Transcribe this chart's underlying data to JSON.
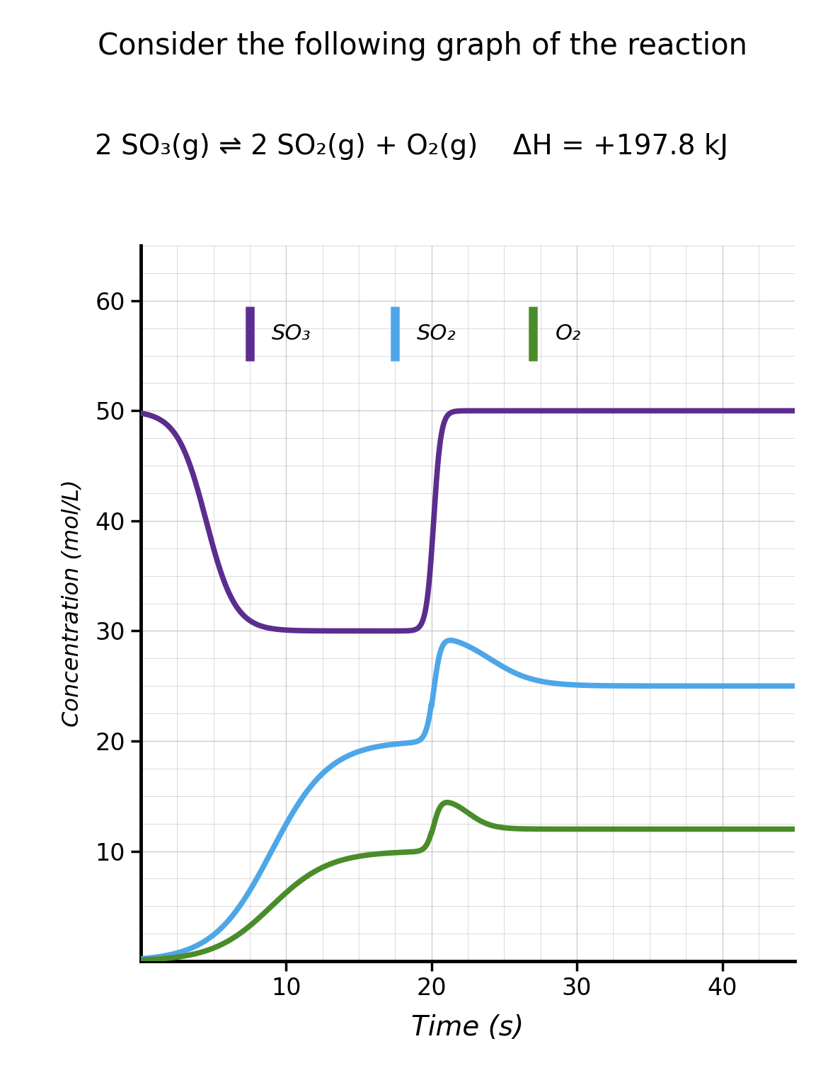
{
  "title_line1": "Consider the following graph of the reaction",
  "equation_text": "2 SO₃(g) ⇌ 2 SO₂(g) + O₂(g)    ΔH = +197.8 kJ",
  "ylabel": "Concentration (mol/L)",
  "xlabel": "Time (s)",
  "xlim": [
    0,
    45
  ],
  "ylim": [
    0,
    65
  ],
  "xticks": [
    10,
    20,
    30,
    40
  ],
  "yticks": [
    10,
    20,
    30,
    40,
    50,
    60
  ],
  "grid_color": "#cccccc",
  "background_color": "#ffffff",
  "so3_color": "#5B2D8E",
  "so2_color": "#4DA6E8",
  "o2_color": "#4A8C2A",
  "so3_label": "SO₃",
  "so2_label": "SO₂",
  "o2_label": "O₂",
  "linewidth": 5.5,
  "so3_init": 50,
  "so3_eq1": 30,
  "so3_eq2": 50,
  "so2_init": 0,
  "so2_eq1": 20,
  "so2_jump": 30,
  "so2_eq2": 25,
  "o2_init": 0,
  "o2_eq1": 10,
  "o2_jump": 15,
  "o2_eq2": 12
}
